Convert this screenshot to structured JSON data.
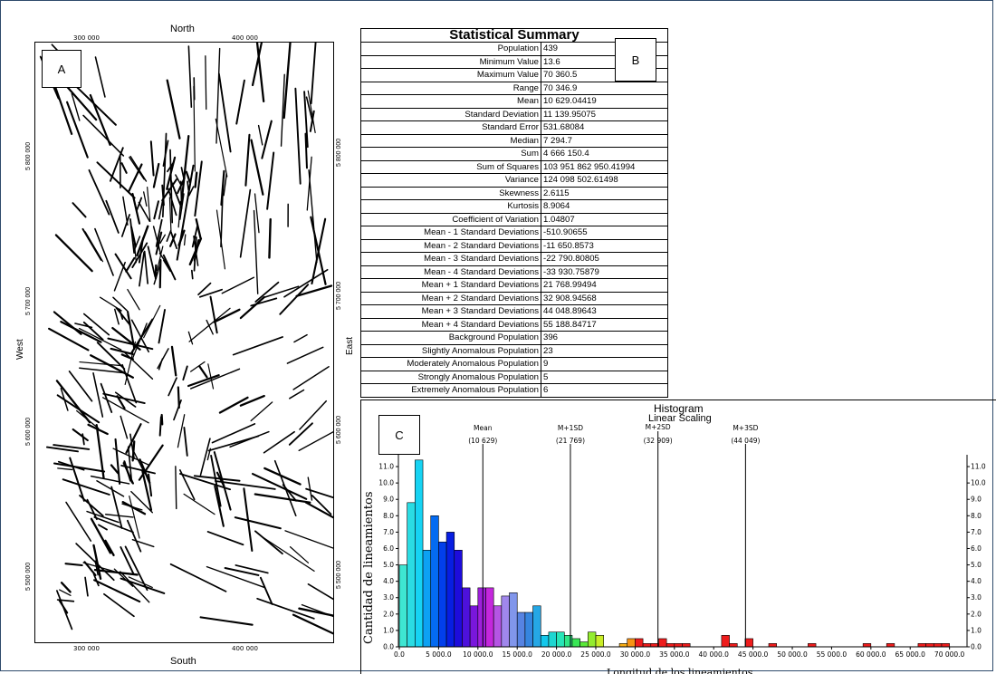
{
  "map": {
    "label": "A",
    "north": "North",
    "south": "South",
    "west": "West",
    "east": "East",
    "x_ticks": [
      "300 000",
      "400 000"
    ],
    "y_ticks": [
      "5 800 000",
      "5 700 000",
      "5 600 000",
      "5 500 000"
    ]
  },
  "summary": {
    "label": "B",
    "title": "Statistical Summary",
    "rows": [
      {
        "k": "Population",
        "v": "439"
      },
      {
        "k": "Minimum Value",
        "v": "13.6"
      },
      {
        "k": "Maximum Value",
        "v": "70 360.5"
      },
      {
        "k": "Range",
        "v": "70 346.9"
      },
      {
        "k": "Mean",
        "v": "10 629.04419"
      },
      {
        "k": "Standard Deviation",
        "v": "11 139.95075"
      },
      {
        "k": "Standard Error",
        "v": "531.68084"
      },
      {
        "k": "Median",
        "v": "7 294.7"
      },
      {
        "k": "Sum",
        "v": "4 666 150.4"
      },
      {
        "k": "Sum of Squares",
        "v": "103 951 862 950.41994"
      },
      {
        "k": "Variance",
        "v": "124 098 502.61498"
      },
      {
        "k": "Skewness",
        "v": "2.6115"
      },
      {
        "k": "Kurtosis",
        "v": "8.9064"
      },
      {
        "k": "Coefficient of Variation",
        "v": "1.04807"
      },
      {
        "k": "Mean - 1 Standard Deviations",
        "v": "-510.90655"
      },
      {
        "k": "Mean - 2 Standard Deviations",
        "v": "-11 650.8573"
      },
      {
        "k": "Mean - 3 Standard Deviations",
        "v": "-22 790.80805"
      },
      {
        "k": "Mean - 4 Standard Deviations",
        "v": "-33 930.75879"
      },
      {
        "k": "Mean + 1 Standard Deviations",
        "v": "21 768.99494"
      },
      {
        "k": "Mean + 2 Standard Deviations",
        "v": "32 908.94568"
      },
      {
        "k": "Mean + 3 Standard Deviations",
        "v": "44 048.89643"
      },
      {
        "k": "Mean + 4 Standard Deviations",
        "v": "55 188.84717"
      },
      {
        "k": "Background Population",
        "v": "396"
      },
      {
        "k": "Slightly Anomalous Population",
        "v": "23"
      },
      {
        "k": "Moderately Anomalous Population",
        "v": "9"
      },
      {
        "k": "Strongly Anomalous Population",
        "v": "5"
      },
      {
        "k": "Extremely Anomalous Population",
        "v": "6"
      }
    ]
  },
  "chart_data": {
    "type": "bar",
    "panel_label": "C",
    "title": "Histogram",
    "subtitle": "Linear Scaling",
    "xlabel": "Longitud de los lineamientos",
    "ylabel": "Cantidad de lineamientos",
    "xlim": [
      0,
      72000
    ],
    "ylim": [
      0,
      11.5
    ],
    "x_ticks": [
      0,
      5000,
      10000,
      15000,
      20000,
      25000,
      30000,
      35000,
      40000,
      45000,
      50000,
      55000,
      60000,
      65000,
      70000
    ],
    "x_tick_labels": [
      "0.0",
      "5 000.0",
      "10 000.0",
      "15 000.0",
      "20 000.0",
      "25 000.0",
      "30 000.0",
      "35 000.0",
      "40 000.0",
      "45 000.0",
      "50 000.0",
      "55 000.0",
      "60 000.0",
      "65 000.0",
      "70 000.0"
    ],
    "y_ticks": [
      0,
      1,
      2,
      3,
      4,
      5,
      6,
      7,
      8,
      9,
      10,
      11
    ],
    "y_tick_labels": [
      "0.0",
      "1.0",
      "2.0",
      "3.0",
      "4.0",
      "5.0",
      "6.0",
      "7.0",
      "8.0",
      "9.0",
      "10.0",
      "11.0"
    ],
    "y_tick_labels_right": [
      "0.0",
      "1.0",
      "2.0",
      "3.0",
      "4.0",
      "5.0",
      "6.0",
      "7.0",
      "8.0",
      "9.0",
      "10.0",
      "11.0"
    ],
    "bin_width": 1000,
    "bin_starts": [
      0,
      1000,
      2000,
      3000,
      4000,
      5000,
      6000,
      7000,
      8000,
      9000,
      10000,
      11000,
      12000,
      13000,
      14000,
      15000,
      16000,
      17000,
      18000,
      19000,
      20000,
      21000,
      22000,
      23000,
      24000,
      25000,
      26000,
      27000,
      28000,
      29000,
      30000,
      31000,
      32000,
      33000,
      34000,
      35000,
      36000,
      37000,
      38000,
      39000,
      40000,
      41000,
      42000,
      43000,
      44000,
      45000,
      46000,
      47000,
      48000,
      49000,
      50000,
      51000,
      52000,
      53000,
      54000,
      55000,
      56000,
      57000,
      58000,
      59000,
      60000,
      61000,
      62000,
      63000,
      64000,
      65000,
      66000,
      67000,
      68000,
      69000,
      70000
    ],
    "values": [
      5,
      8.8,
      11.4,
      5.9,
      8,
      6.4,
      7,
      5.9,
      3.6,
      2.5,
      3.6,
      3.6,
      2.5,
      3.1,
      3.3,
      2.1,
      2.1,
      2.5,
      0.7,
      0.9,
      0.9,
      0.7,
      0.5,
      0.3,
      0.9,
      0.7,
      0,
      0,
      0.2,
      0.5,
      0.5,
      0.2,
      0.2,
      0.5,
      0.2,
      0.2,
      0.2,
      0,
      0,
      0,
      0,
      0.7,
      0.2,
      0,
      0.5,
      0,
      0,
      0.2,
      0,
      0,
      0,
      0,
      0.2,
      0,
      0,
      0,
      0,
      0,
      0,
      0.2,
      0,
      0,
      0.2,
      0,
      0,
      0,
      0.2,
      0.2,
      0.2,
      0.2,
      0
    ],
    "reference_lines": [
      {
        "label": "Mean",
        "value_label": "(10 629)",
        "x": 10629
      },
      {
        "label": "M+1SD",
        "value_label": "(21 769)",
        "x": 21769
      },
      {
        "label": "M+2SD",
        "value_label": "(32 909)",
        "x": 32909
      },
      {
        "label": "M+3SD",
        "value_label": "(44 049)",
        "x": 44049
      }
    ],
    "colors": {
      "bar_outline": "#000000"
    }
  }
}
